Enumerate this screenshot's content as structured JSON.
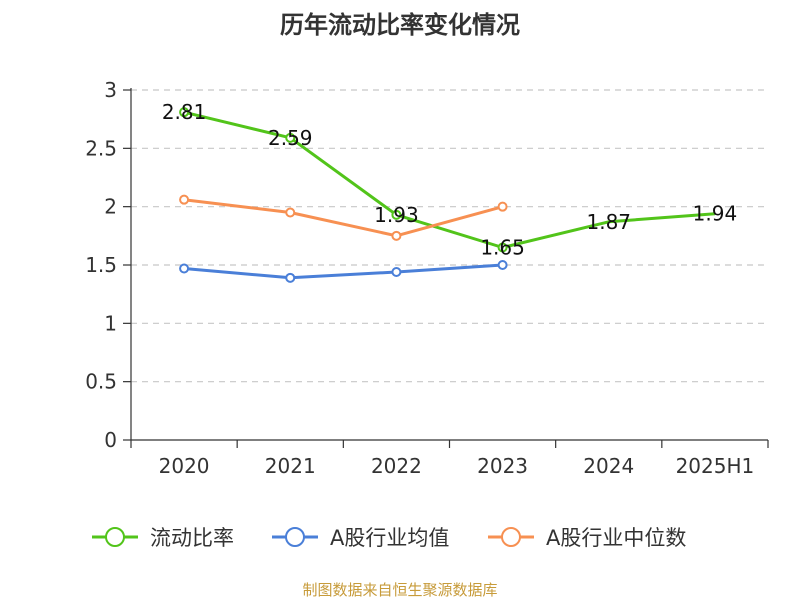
{
  "chart_data": {
    "type": "line",
    "title": "历年流动比率变化情况",
    "categories": [
      "2020",
      "2021",
      "2022",
      "2023",
      "2024",
      "2025H1"
    ],
    "ylim": [
      0,
      3
    ],
    "yticks": [
      0,
      0.5,
      1,
      1.5,
      2,
      2.5,
      3
    ],
    "ytick_labels": [
      "0",
      "0.5",
      "1",
      "1.5",
      "2",
      "2.5",
      "3"
    ],
    "grid": true,
    "legend_position": "bottom",
    "series": [
      {
        "name": "流动比率",
        "color": "#52c41a",
        "values": [
          2.81,
          2.59,
          1.93,
          1.65,
          1.87,
          1.94
        ],
        "labels": [
          "2.81",
          "2.59",
          "1.93",
          "1.65",
          "1.87",
          "1.94"
        ],
        "show_labels": true,
        "markers_hidden_after": 3
      },
      {
        "name": "A股行业均值",
        "color": "#4a7fd8",
        "values": [
          1.47,
          1.39,
          1.44,
          1.5,
          null,
          null
        ]
      },
      {
        "name": "A股行业中位数",
        "color": "#f79052",
        "values": [
          2.06,
          1.95,
          1.75,
          2.0,
          null,
          null
        ]
      }
    ]
  },
  "source": {
    "text": "制图数据来自恒生聚源数据库",
    "color": "#c79b3a"
  }
}
